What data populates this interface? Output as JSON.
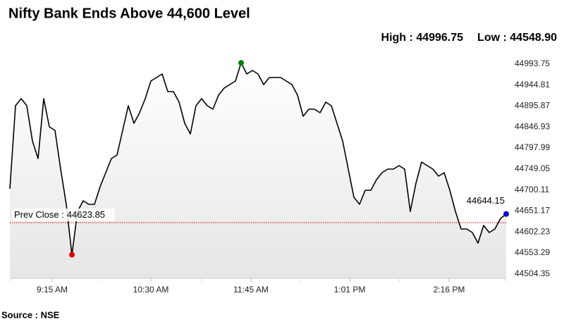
{
  "chart_data": {
    "type": "line",
    "title": "Nifty Bank Ends Above 44,600 Level",
    "high": {
      "label": "High :",
      "value": 44996.75
    },
    "low": {
      "label": "Low :",
      "value": 44548.9,
      "value_label": "44548.90"
    },
    "prev_close": {
      "label": "Prev Close :",
      "value": 44623.85
    },
    "source": "Source : NSE",
    "color": "#000000",
    "high_color": "#008000",
    "low_color": "#e00000",
    "last_color": "#0000cc",
    "prev_close_color": "#cc0000",
    "values": [
      44702.76,
      44896.72,
      44913.16,
      44896.72,
      44814.53,
      44773.44,
      44913.16,
      44847.41,
      44839.19,
      44748.78,
      44666.59,
      44548.9,
      44650.16,
      44674.81,
      44666.59,
      44666.59,
      44707.69,
      44740.56,
      44773.44,
      44781.66,
      44839.19,
      44896.72,
      44855.63,
      44880.28,
      44913.16,
      44954.25,
      44962.47,
      44970.69,
      44929.59,
      44929.59,
      44904.94,
      44855.63,
      44830.97,
      44896.72,
      44913.16,
      44896.72,
      44888.5,
      44921.38,
      44937.81,
      44946.03,
      44954.25,
      44996.75,
      44970.69,
      44978.91,
      44970.69,
      44946.03,
      44962.47,
      44962.47,
      44962.47,
      44954.25,
      44946.03,
      44921.38,
      44872.06,
      44888.5,
      44888.5,
      44880.28,
      44904.94,
      44896.72,
      44855.63,
      44814.53,
      44748.78,
      44683.03,
      44666.59,
      44699.47,
      44699.47,
      44724.13,
      44740.56,
      44748.78,
      44748.78,
      44757,
      44748.78,
      44650.16,
      44715.91,
      44765.22,
      44757,
      44748.78,
      44732.34,
      44740.56,
      44699.47,
      44650.16,
      44609.06,
      44609.06,
      44600.84,
      44576.19,
      44617.28,
      44600.84,
      44609.06,
      44633.72,
      44644.15
    ],
    "xlim": [
      0,
      88
    ],
    "xticks": [
      {
        "value": 7.5,
        "label": "9:15 AM"
      },
      {
        "value": 25,
        "label": "10:30 AM"
      },
      {
        "value": 42.75,
        "label": "11:45 AM"
      },
      {
        "value": 60.25,
        "label": "1:01 PM"
      },
      {
        "value": 77.875,
        "label": "2:16 PM"
      }
    ],
    "ylim": [
      44494,
      45020
    ],
    "yticks": [
      44993.75,
      44944.81,
      44895.87,
      44846.93,
      44797.99,
      44749.05,
      44700.11,
      44651.17,
      44602.23,
      44553.29,
      44504.35
    ]
  }
}
